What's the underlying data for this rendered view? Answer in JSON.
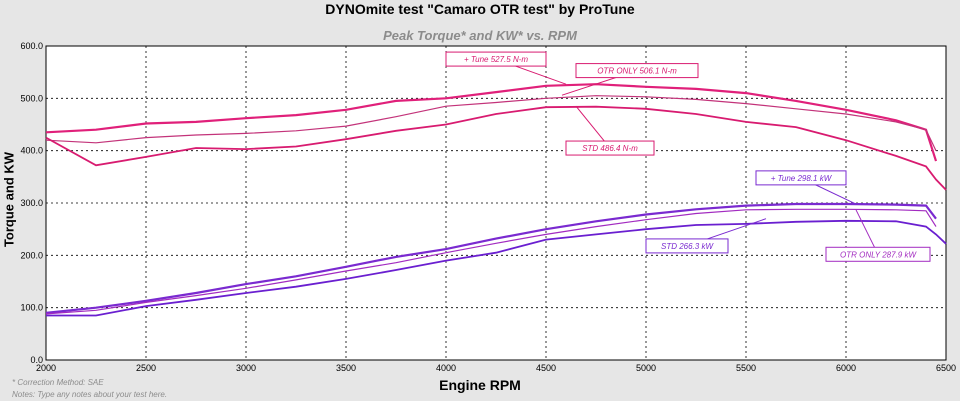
{
  "chart_data": {
    "type": "line",
    "title": "DYNOmite test \"Camaro OTR test\" by ProTune",
    "subtitle": "Peak Torque* and KW* vs. RPM",
    "xlabel": "Engine RPM",
    "ylabel": "Torque and KW",
    "xlim": [
      2000,
      6500
    ],
    "ylim": [
      0,
      600
    ],
    "xticks": [
      2000,
      2500,
      3000,
      3500,
      4000,
      4500,
      5000,
      5500,
      6000,
      6500
    ],
    "yticks": [
      "0.0",
      "100.0",
      "200.0",
      "300.0",
      "400.0",
      "500.0",
      "600.0"
    ],
    "grid": true,
    "x": [
      2000,
      2250,
      2500,
      2750,
      3000,
      3250,
      3500,
      3750,
      4000,
      4250,
      4500,
      4750,
      5000,
      5250,
      5500,
      5750,
      6000,
      6250,
      6400,
      6450,
      6500
    ],
    "series": [
      {
        "color": "#e0207a",
        "values": [
          435,
          440,
          452,
          455,
          462,
          468,
          478,
          495,
          500,
          512,
          524,
          527,
          522,
          518,
          510,
          495,
          478,
          458,
          440,
          380,
          null
        ]
      },
      {
        "color": "#c3337a",
        "values": [
          420,
          415,
          425,
          430,
          433,
          438,
          447,
          465,
          485,
          492,
          500,
          505,
          503,
          498,
          490,
          480,
          470,
          455,
          440,
          400,
          null
        ]
      },
      {
        "color": "#d81b70",
        "values": [
          425,
          372,
          388,
          405,
          403,
          408,
          422,
          438,
          450,
          470,
          483,
          484,
          480,
          470,
          455,
          445,
          420,
          390,
          370,
          345,
          325
        ]
      },
      {
        "color": "#7a2ad0",
        "values": [
          90,
          100,
          113,
          128,
          145,
          160,
          178,
          197,
          212,
          232,
          250,
          265,
          278,
          288,
          295,
          298,
          298,
          297,
          295,
          270,
          null
        ]
      },
      {
        "color": "#a22bc0",
        "values": [
          88,
          95,
          110,
          123,
          137,
          153,
          170,
          186,
          205,
          223,
          240,
          255,
          268,
          280,
          287,
          288,
          288,
          287,
          285,
          255,
          null
        ]
      },
      {
        "color": "#6a1fd0",
        "values": [
          85,
          85,
          103,
          115,
          128,
          140,
          155,
          172,
          190,
          205,
          230,
          240,
          250,
          258,
          260,
          264,
          266,
          265,
          255,
          240,
          222
        ]
      }
    ],
    "annotations": [
      {
        "text": "+ Tune 527.5 N-m",
        "color": "#d81b70"
      },
      {
        "text": "OTR ONLY 506.1 N-m",
        "color": "#d81b70"
      },
      {
        "text": "STD 486.4 N-m",
        "color": "#d81b70"
      },
      {
        "text": "+ Tune 298.1 kW",
        "color": "#7a2ad0"
      },
      {
        "text": "STD 266.3 kW",
        "color": "#7a2ad0"
      },
      {
        "text": "OTR ONLY 287.9 kW",
        "color": "#a22bc0"
      }
    ]
  },
  "notes": {
    "line1": "* Correction Method: SAE",
    "line2": "Notes: Type any notes about your test here."
  }
}
